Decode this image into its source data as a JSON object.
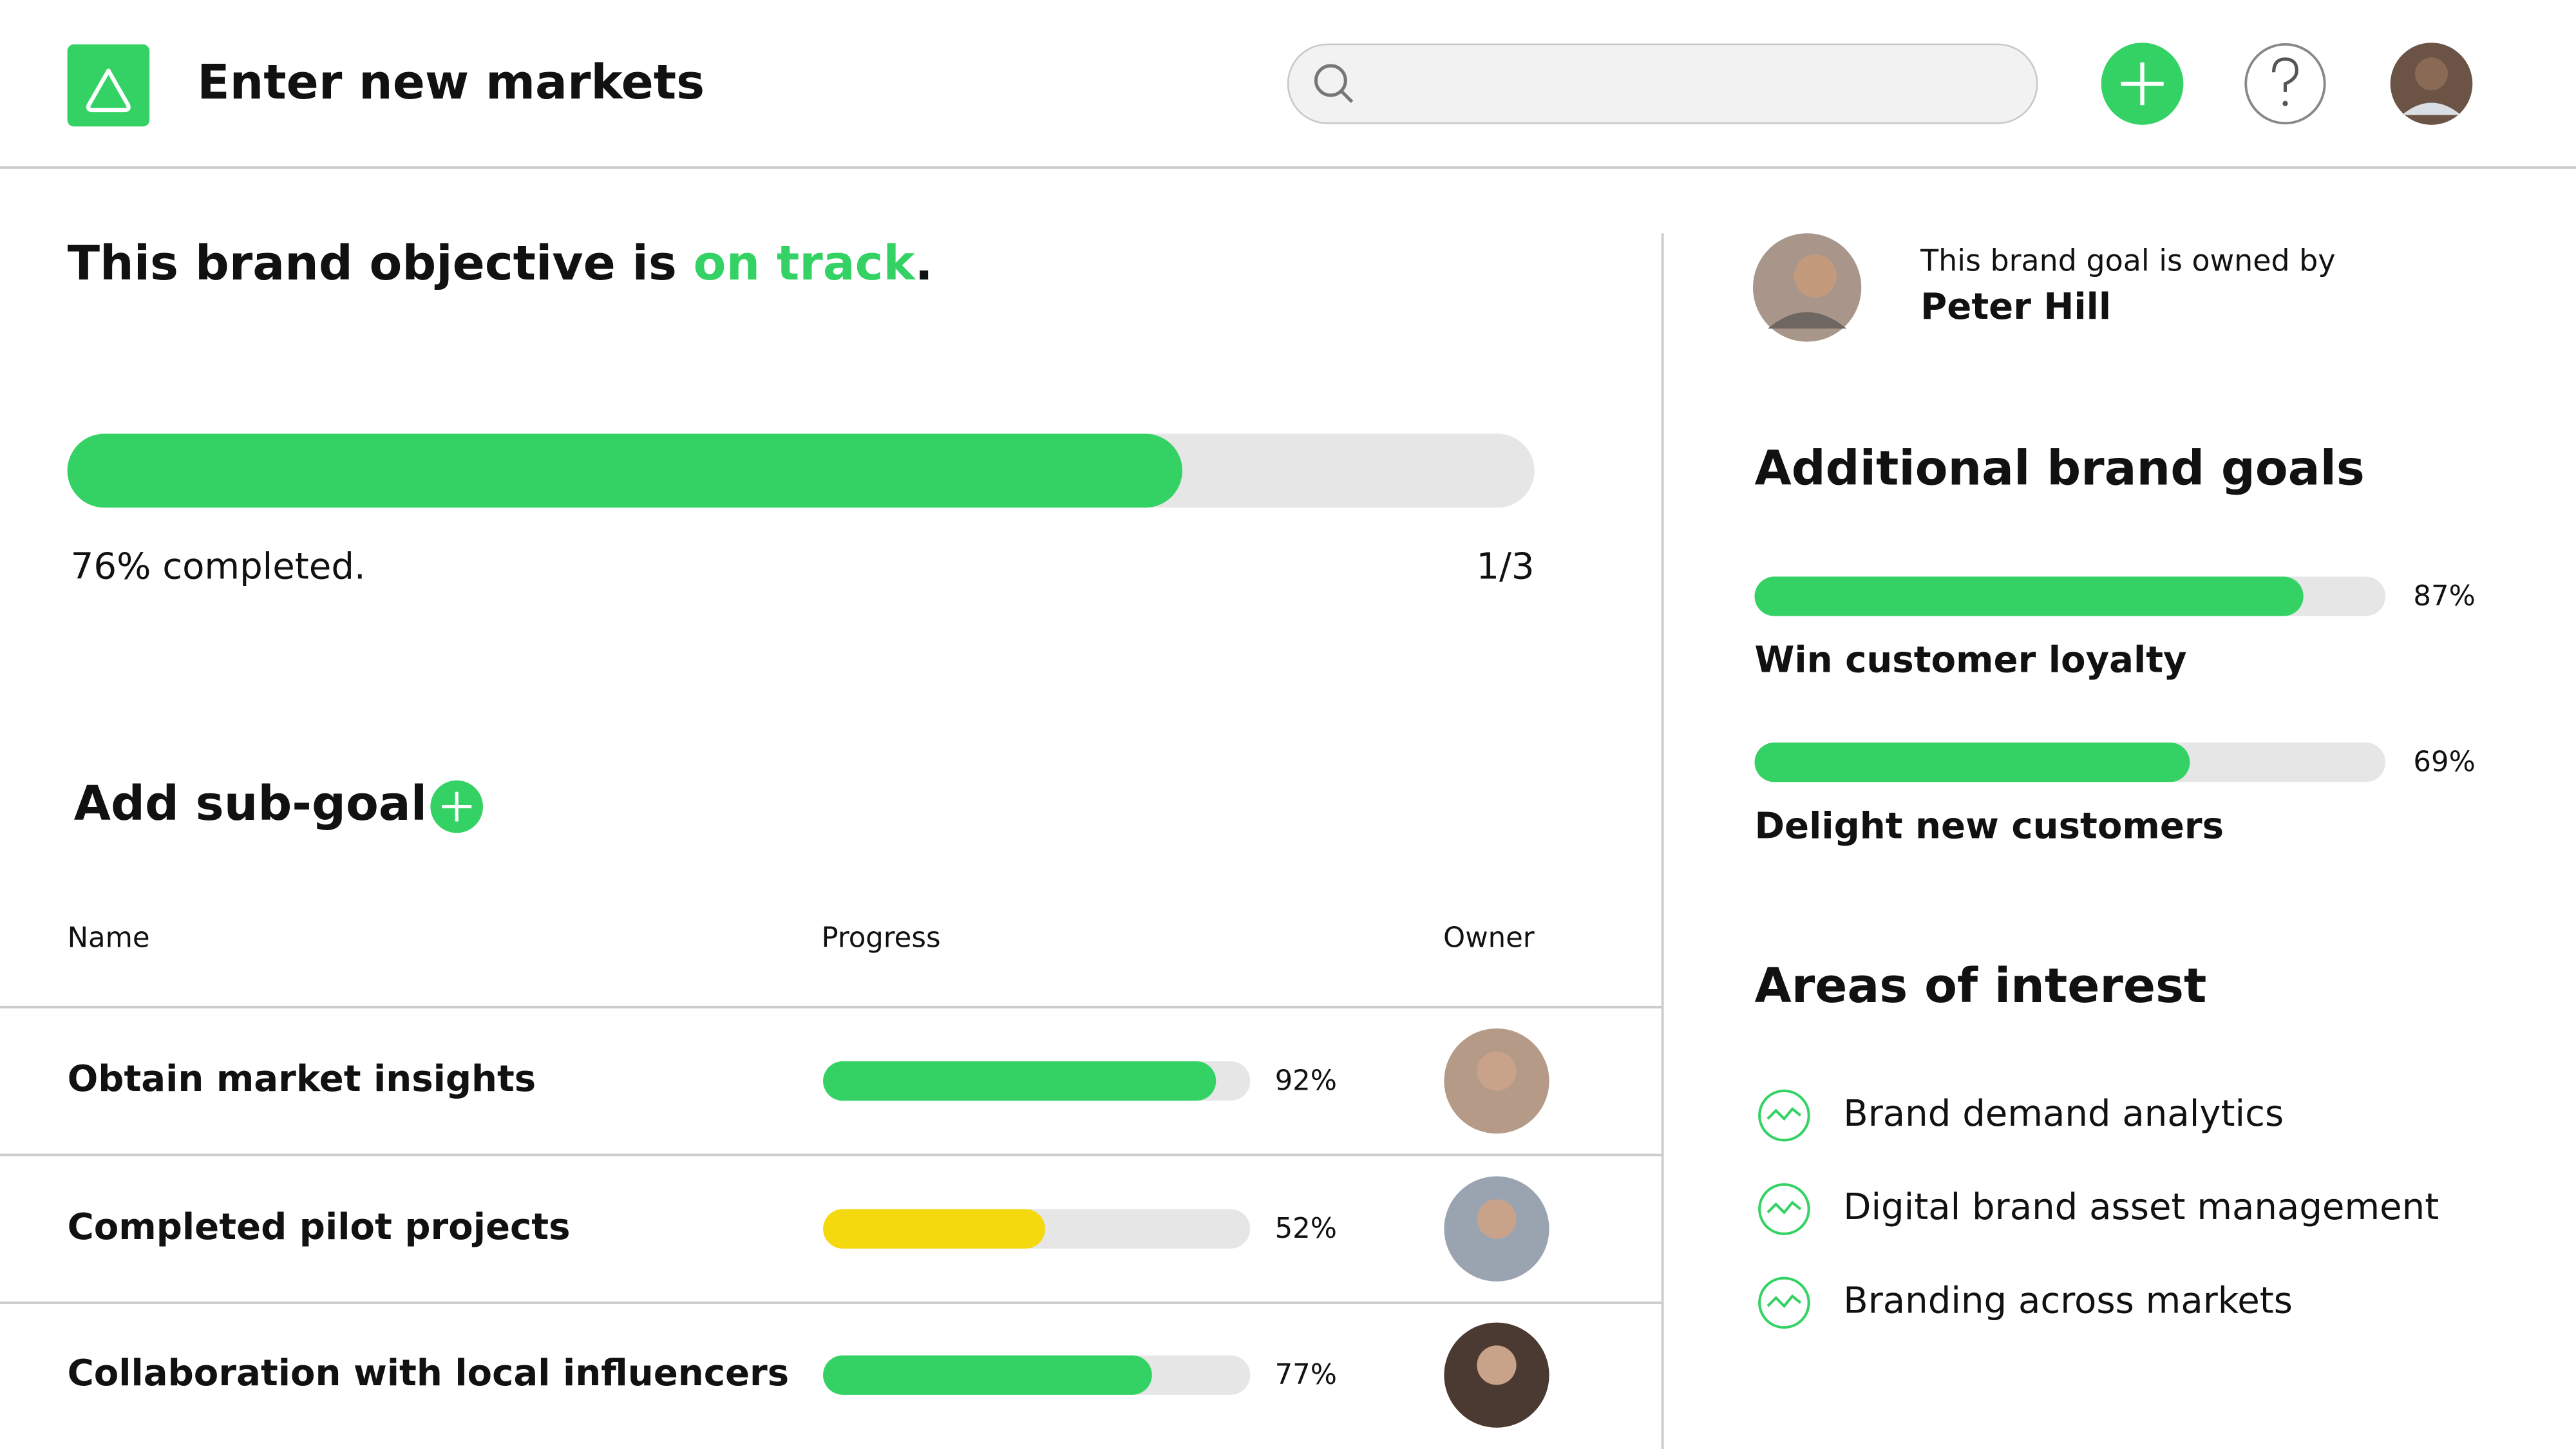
{
  "header": {
    "title": "Enter new markets"
  },
  "objective": {
    "headline_prefix": "This brand objective is ",
    "status": "on track",
    "headline_suffix": ".",
    "progress": 76,
    "progress_label": "76% completed.",
    "count": "1/3",
    "color": "#34d264"
  },
  "subgoals": {
    "add_label": "Add sub-goal",
    "columns": [
      "Name",
      "Progress",
      "Owner"
    ],
    "rows": [
      {
        "name": "Obtain market insights",
        "progress": 92,
        "progress_label": "92%",
        "color": "#34d264"
      },
      {
        "name": "Completed pilot projects",
        "progress": 52,
        "progress_label": "52%",
        "color": "#f5d90f"
      },
      {
        "name": "Collaboration with local influencers",
        "progress": 77,
        "progress_label": "77%",
        "color": "#34d264"
      }
    ]
  },
  "owner": {
    "caption": "This brand goal is owned by",
    "name": "Peter Hill"
  },
  "additional_goals": {
    "title": "Additional brand goals",
    "items": [
      {
        "name": "Win customer loyalty",
        "progress": 87,
        "progress_label": "87%",
        "color": "#34d264"
      },
      {
        "name": "Delight new customers",
        "progress": 69,
        "progress_label": "69%",
        "color": "#34d264"
      }
    ]
  },
  "areas": {
    "title": "Areas of interest",
    "items": [
      "Brand demand analytics",
      "Digital brand asset management",
      "Branding across markets"
    ]
  }
}
